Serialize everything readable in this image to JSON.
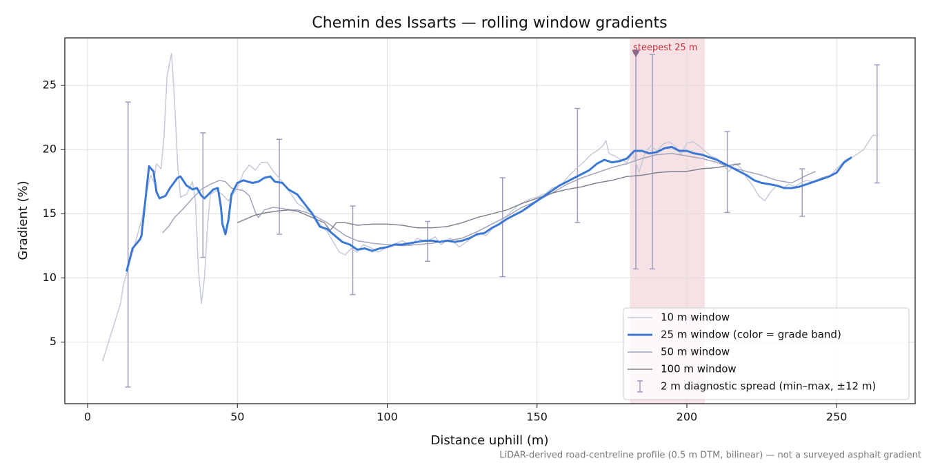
{
  "chart_data": {
    "type": "line",
    "title": "Chemin des Issarts — rolling window gradients",
    "xlabel": "Distance uphill (m)",
    "ylabel": "Gradient (%)",
    "footnote": "LiDAR-derived road-centreline profile (0.5 m DTM, bilinear) — not a surveyed asphalt gradient",
    "xlim": [
      -7.6,
      276.2
    ],
    "ylim": [
      0.2,
      28.7
    ],
    "xticks": [
      0,
      50,
      100,
      150,
      200,
      250
    ],
    "yticks": [
      5,
      10,
      15,
      20,
      25
    ],
    "grid": true,
    "legend": "lower right",
    "highlight": {
      "xlim": [
        181,
        206
      ],
      "color": "#e8b4bc"
    },
    "annotation": {
      "text": "steepest 25 m",
      "x": 183,
      "y": 27.5,
      "color": "#c0303a",
      "marker_color": "#8a6a8c"
    },
    "series": [
      {
        "name": "10 m window",
        "color": "#c5cad6",
        "width": 1.5,
        "x": [
          5,
          7,
          9,
          11,
          12,
          15,
          18,
          20,
          21,
          22,
          23,
          24.5,
          25.5,
          26.5,
          28,
          29,
          30,
          31,
          33,
          35,
          36,
          37,
          38,
          39,
          40,
          41,
          43,
          45,
          47,
          50,
          52,
          54,
          56,
          58,
          60,
          62,
          65,
          68,
          70,
          72,
          75,
          77.5,
          80,
          82,
          84,
          86,
          88,
          90,
          92,
          95,
          97,
          100,
          103,
          105,
          108,
          110,
          113,
          116,
          118,
          121,
          124,
          127,
          130,
          133,
          135,
          138,
          141,
          144,
          147,
          150,
          153,
          155,
          158,
          160,
          163,
          165,
          168,
          170,
          172,
          173,
          174,
          176,
          178,
          180,
          182,
          184,
          186,
          188,
          190,
          192,
          194,
          196,
          198,
          200,
          202,
          204,
          206,
          208,
          210,
          212,
          214,
          216,
          218,
          220,
          222,
          224,
          226,
          228,
          230,
          232,
          234,
          236,
          238,
          240,
          242,
          245,
          248,
          250,
          253,
          256,
          259,
          262,
          264
        ],
        "values": [
          3.5,
          5,
          6.5,
          8,
          9.5,
          12,
          14.5,
          17,
          18,
          17.5,
          18.9,
          18.5,
          21,
          25.7,
          27.5,
          24,
          19,
          16.3,
          16.5,
          17.5,
          16,
          10.5,
          8,
          10,
          14,
          16.5,
          16.8,
          16.5,
          16,
          17,
          18.2,
          18.8,
          18.4,
          19,
          19,
          18.3,
          17.5,
          16.5,
          15.8,
          15.5,
          15.0,
          14.2,
          13.6,
          12.8,
          12.0,
          11.8,
          12.3,
          12.0,
          12.6,
          12.3,
          12.0,
          12.4,
          12.7,
          12.9,
          12.5,
          13.1,
          12.8,
          13.2,
          12.6,
          13.1,
          12.4,
          12.9,
          13.5,
          13.3,
          13.8,
          14.4,
          15.1,
          15.7,
          16.1,
          16.3,
          16.6,
          17.0,
          17.2,
          17.8,
          18.5,
          18.9,
          19.6,
          19.9,
          20.3,
          20.7,
          19.7,
          19.5,
          19.2,
          19.0,
          19.8,
          18.2,
          19.7,
          20.3,
          19.9,
          20.4,
          20.6,
          20.3,
          19.6,
          20.5,
          20.6,
          20.3,
          19.9,
          19.5,
          19.3,
          18.8,
          18.3,
          18.9,
          18.6,
          17.8,
          17.2,
          16.4,
          16.0,
          16.7,
          17.2,
          17.0,
          17.3,
          17.1,
          17.4,
          17.6,
          17.5,
          17.8,
          18.0,
          18.5,
          19.2,
          19.5,
          20.0,
          21.1,
          21.1
        ]
      },
      {
        "name": "25 m window (color = grade band)",
        "color": "#3a78d4",
        "width": 3,
        "x": [
          13,
          15,
          17.5,
          18,
          20.5,
          22,
          23,
          24,
          26,
          27.5,
          30,
          31,
          33,
          35,
          36.5,
          38,
          39,
          42,
          43.5,
          44.5,
          45,
          46,
          47,
          48,
          50,
          52,
          55,
          57,
          59,
          61,
          62.5,
          65,
          67,
          70,
          72,
          75,
          77.5,
          80,
          82.5,
          85,
          87.5,
          90,
          92.5,
          95,
          97.5,
          100,
          102.5,
          105,
          107.5,
          110,
          112.5,
          115,
          117.5,
          120,
          122.5,
          125,
          127.5,
          130,
          132.5,
          135,
          137.5,
          140,
          142.5,
          145,
          147.5,
          150,
          152.5,
          155,
          157.5,
          160,
          162.5,
          165,
          167.5,
          170,
          172.5,
          175,
          177.5,
          180,
          182.5,
          185,
          187.5,
          190,
          192.5,
          195,
          197.5,
          200,
          202.5,
          205,
          207.5,
          210,
          212.5,
          215,
          217.5,
          220,
          222.5,
          225,
          227.5,
          230,
          232.5,
          235,
          237.5,
          240,
          242.5,
          245,
          247.5,
          250,
          252.5,
          255
        ],
        "values": [
          10.5,
          12.3,
          13.0,
          13.3,
          18.7,
          18.3,
          16.7,
          16.2,
          16.4,
          17,
          17.8,
          17.9,
          17.2,
          16.9,
          17.0,
          16.4,
          16.2,
          16.9,
          17.0,
          15.5,
          14.2,
          13.4,
          14.5,
          16.5,
          17.4,
          17.6,
          17.4,
          17.5,
          17.8,
          17.9,
          17.5,
          17.4,
          16.9,
          16.5,
          15.9,
          15.0,
          14.0,
          13.8,
          13.3,
          12.8,
          12.6,
          12.2,
          12.3,
          12.1,
          12.3,
          12.4,
          12.6,
          12.6,
          12.7,
          12.8,
          12.9,
          12.9,
          12.8,
          12.9,
          12.8,
          12.9,
          13.1,
          13.4,
          13.5,
          13.9,
          14.2,
          14.6,
          14.9,
          15.2,
          15.6,
          16.0,
          16.4,
          16.8,
          17.2,
          17.5,
          17.8,
          18.1,
          18.4,
          18.9,
          19.2,
          19.0,
          19.1,
          19.3,
          19.9,
          19.9,
          19.7,
          19.8,
          20.1,
          20.2,
          19.9,
          19.9,
          19.7,
          19.6,
          19.4,
          19.2,
          18.9,
          18.6,
          18.3,
          18.0,
          17.6,
          17.4,
          17.3,
          17.2,
          17.0,
          17.0,
          17.1,
          17.3,
          17.5,
          17.7,
          17.9,
          18.2,
          19.0,
          19.4
        ]
      },
      {
        "name": "50 m window",
        "color": "#a0a4bc",
        "width": 1.5,
        "x": [
          25,
          27,
          29,
          32,
          35,
          38,
          41,
          44,
          46,
          48,
          50,
          52,
          54,
          56,
          57,
          59,
          62,
          65,
          68,
          70,
          73,
          76,
          80,
          83,
          86,
          90,
          95,
          100,
          105,
          110,
          115,
          120,
          125,
          130,
          135,
          140,
          145,
          150,
          155,
          160,
          165,
          170,
          175,
          180,
          185,
          190,
          195,
          200,
          205,
          210,
          215,
          220,
          225,
          230,
          235,
          240,
          243
        ],
        "values": [
          13.5,
          14.0,
          14.7,
          15.4,
          16.2,
          16.9,
          17.3,
          17.6,
          17.5,
          17.0,
          16.9,
          16.8,
          16.4,
          15.1,
          14.7,
          15.3,
          15.5,
          15.4,
          15.3,
          15.3,
          15.1,
          14.8,
          14.3,
          13.8,
          13.3,
          12.9,
          12.7,
          12.6,
          12.5,
          12.6,
          12.7,
          12.9,
          13.1,
          13.6,
          14.2,
          14.8,
          15.5,
          16.0,
          16.6,
          17.3,
          17.8,
          18.2,
          18.6,
          18.9,
          19.3,
          19.6,
          19.7,
          19.5,
          19.3,
          19.0,
          18.6,
          18.3,
          18.0,
          17.6,
          17.4,
          18.0,
          18.3
        ]
      },
      {
        "name": "100 m window",
        "color": "#808490",
        "width": 1.5,
        "x": [
          50,
          53,
          56,
          60,
          63,
          67,
          70,
          73,
          76,
          79,
          81,
          83,
          86,
          90,
          95,
          100,
          105,
          110,
          115,
          120,
          125,
          130,
          135,
          140,
          145,
          150,
          155,
          160,
          165,
          170,
          175,
          180,
          185,
          190,
          195,
          200,
          205,
          210,
          215,
          218
        ],
        "values": [
          14.3,
          14.6,
          14.9,
          15.1,
          15.2,
          15.3,
          15.2,
          14.9,
          14.6,
          14.3,
          13.7,
          14.3,
          14.3,
          14.1,
          14.2,
          14.2,
          14.1,
          13.9,
          13.9,
          14.0,
          14.3,
          14.7,
          15.0,
          15.3,
          15.8,
          16.2,
          16.6,
          16.9,
          17.1,
          17.4,
          17.6,
          17.9,
          18.0,
          18.2,
          18.3,
          18.3,
          18.5,
          18.6,
          18.8,
          18.9
        ]
      }
    ],
    "errorbars": {
      "name": "2 m diagnostic spread (min–max, ±12 m)",
      "color": "#a09cc0",
      "x": [
        13.5,
        38.5,
        64,
        88.5,
        113.5,
        138.5,
        163.5,
        183,
        188.5,
        213.5,
        238.5,
        263.5
      ],
      "low": [
        1.5,
        11.6,
        13.4,
        8.7,
        11.3,
        10.1,
        14.3,
        10.7,
        10.7,
        15.1,
        14.8,
        17.4
      ],
      "high": [
        23.7,
        21.3,
        20.8,
        15.6,
        14.4,
        17.8,
        23.2,
        27.5,
        27.4,
        21.4,
        18.5,
        26.6
      ]
    }
  }
}
